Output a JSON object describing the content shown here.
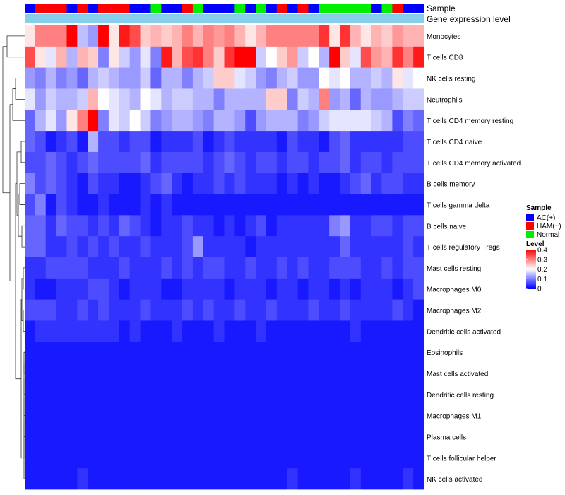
{
  "chart_data": {
    "type": "heatmap",
    "annotation_labels": [
      "Sample",
      "Gene expression level"
    ],
    "sample_groups": [
      "A",
      "H",
      "H",
      "H",
      "A",
      "H",
      "A",
      "H",
      "H",
      "H",
      "A",
      "A",
      "N",
      "A",
      "A",
      "H",
      "N",
      "A",
      "A",
      "A",
      "N",
      "A",
      "N",
      "A",
      "H",
      "A",
      "H",
      "A",
      "N",
      "N",
      "N",
      "N",
      "N",
      "A",
      "N",
      "H",
      "A",
      "A"
    ],
    "rows": [
      "Monocytes",
      "T cells CD8",
      "NK cells resting",
      "Neutrophils",
      "T cells CD4 memory resting",
      "T cells CD4 naive",
      "T cells CD4 memory activated",
      "B cells memory",
      "T cells gamma delta",
      "B cells naive",
      "T cells regulatory  Tregs",
      "Mast cells resting",
      "Macrophages M0",
      "Macrophages M2",
      "Dendritic cells activated",
      "Eosinophils",
      "Mast cells activated",
      "Dendritic cells resting",
      "Macrophages M1",
      "Plasma cells",
      "T cells follicular helper",
      "NK cells activated"
    ],
    "row_profiles": {
      "Monocytes": [
        0.22,
        0.3,
        0.3,
        0.3,
        0.4,
        0.15,
        0.12,
        0.4,
        0.22,
        0.38,
        0.34,
        0.24,
        0.26,
        0.24,
        0.26,
        0.3,
        0.26,
        0.3,
        0.28,
        0.3,
        0.26,
        0.22,
        0.26,
        0.3,
        0.3,
        0.3,
        0.3,
        0.3,
        0.36,
        0.22,
        0.36,
        0.26,
        0.22,
        0.26,
        0.24,
        0.28,
        0.26,
        0.26
      ],
      "T cells CD8": [
        0.34,
        0.22,
        0.18,
        0.26,
        0.14,
        0.26,
        0.24,
        0.1,
        0.22,
        0.16,
        0.12,
        0.18,
        0.1,
        0.38,
        0.26,
        0.34,
        0.36,
        0.3,
        0.24,
        0.36,
        0.4,
        0.4,
        0.16,
        0.2,
        0.24,
        0.28,
        0.16,
        0.2,
        0.14,
        0.4,
        0.24,
        0.18,
        0.34,
        0.28,
        0.26,
        0.36,
        0.3,
        0.38
      ],
      "NK cells resting": [
        0.12,
        0.1,
        0.14,
        0.1,
        0.12,
        0.08,
        0.14,
        0.16,
        0.14,
        0.12,
        0.12,
        0.16,
        0.08,
        0.14,
        0.14,
        0.1,
        0.14,
        0.16,
        0.24,
        0.24,
        0.18,
        0.16,
        0.12,
        0.1,
        0.14,
        0.16,
        0.12,
        0.12,
        0.2,
        0.18,
        0.2,
        0.14,
        0.14,
        0.16,
        0.14,
        0.22,
        0.18,
        0.2
      ],
      "Neutrophils": [
        0.18,
        0.12,
        0.16,
        0.14,
        0.14,
        0.16,
        0.26,
        0.2,
        0.18,
        0.16,
        0.14,
        0.2,
        0.18,
        0.14,
        0.16,
        0.16,
        0.14,
        0.14,
        0.1,
        0.14,
        0.14,
        0.14,
        0.14,
        0.24,
        0.24,
        0.1,
        0.16,
        0.14,
        0.3,
        0.12,
        0.14,
        0.08,
        0.14,
        0.12,
        0.12,
        0.14,
        0.16,
        0.16
      ],
      "T cells CD4 memory resting": [
        0.08,
        0.14,
        0.18,
        0.12,
        0.22,
        0.3,
        0.4,
        0.1,
        0.18,
        0.16,
        0.2,
        0.16,
        0.1,
        0.12,
        0.14,
        0.14,
        0.12,
        0.1,
        0.14,
        0.14,
        0.12,
        0.06,
        0.12,
        0.14,
        0.14,
        0.14,
        0.1,
        0.12,
        0.16,
        0.18,
        0.18,
        0.18,
        0.18,
        0.16,
        0.14,
        0.06,
        0.1,
        0.08
      ],
      "T cells CD4 naive": [
        0.08,
        0.06,
        0.02,
        0.04,
        0.06,
        0.02,
        0.14,
        0.06,
        0.06,
        0.04,
        0.06,
        0.06,
        0.02,
        0.04,
        0.04,
        0.04,
        0.06,
        0.02,
        0.04,
        0.06,
        0.04,
        0.04,
        0.04,
        0.04,
        0.02,
        0.06,
        0.04,
        0.04,
        0.02,
        0.06,
        0.08,
        0.04,
        0.04,
        0.04,
        0.04,
        0.04,
        0.06,
        0.06
      ],
      "T cells CD4 memory activated": [
        0.06,
        0.06,
        0.08,
        0.06,
        0.04,
        0.06,
        0.08,
        0.06,
        0.06,
        0.06,
        0.06,
        0.08,
        0.04,
        0.06,
        0.06,
        0.06,
        0.06,
        0.04,
        0.06,
        0.08,
        0.06,
        0.04,
        0.06,
        0.06,
        0.04,
        0.06,
        0.06,
        0.04,
        0.06,
        0.06,
        0.08,
        0.04,
        0.06,
        0.06,
        0.04,
        0.06,
        0.06,
        0.06
      ],
      "B cells memory": [
        0.1,
        0.06,
        0.08,
        0.06,
        0.04,
        0.02,
        0.06,
        0.04,
        0.04,
        0.02,
        0.02,
        0.04,
        0.06,
        0.08,
        0.04,
        0.02,
        0.04,
        0.04,
        0.06,
        0.04,
        0.06,
        0.04,
        0.04,
        0.04,
        0.02,
        0.04,
        0.02,
        0.04,
        0.02,
        0.02,
        0.04,
        0.06,
        0.08,
        0.04,
        0.06,
        0.06,
        0.04,
        0.04
      ],
      "T cells gamma delta": [
        0.06,
        0.1,
        0.02,
        0.06,
        0.04,
        0.02,
        0.02,
        0.04,
        0.02,
        0.02,
        0.02,
        0.04,
        0.02,
        0.04,
        0.02,
        0.02,
        0.02,
        0.02,
        0.02,
        0.02,
        0.02,
        0.02,
        0.02,
        0.02,
        0.02,
        0.02,
        0.02,
        0.02,
        0.02,
        0.02,
        0.02,
        0.02,
        0.02,
        0.02,
        0.02,
        0.02,
        0.02,
        0.02
      ],
      "B cells naive": [
        0.08,
        0.08,
        0.04,
        0.08,
        0.06,
        0.06,
        0.04,
        0.06,
        0.04,
        0.08,
        0.06,
        0.04,
        0.02,
        0.04,
        0.04,
        0.06,
        0.04,
        0.04,
        0.02,
        0.04,
        0.02,
        0.04,
        0.06,
        0.02,
        0.04,
        0.04,
        0.04,
        0.04,
        0.04,
        0.1,
        0.12,
        0.04,
        0.04,
        0.06,
        0.06,
        0.04,
        0.06,
        0.06
      ],
      "T cells regulatory  Tregs": [
        0.08,
        0.08,
        0.04,
        0.04,
        0.06,
        0.04,
        0.06,
        0.04,
        0.06,
        0.04,
        0.04,
        0.06,
        0.04,
        0.04,
        0.04,
        0.06,
        0.12,
        0.04,
        0.04,
        0.04,
        0.04,
        0.02,
        0.04,
        0.04,
        0.04,
        0.04,
        0.04,
        0.04,
        0.04,
        0.04,
        0.08,
        0.04,
        0.04,
        0.04,
        0.04,
        0.04,
        0.06,
        0.04
      ],
      "Mast cells resting": [
        0.04,
        0.04,
        0.06,
        0.06,
        0.06,
        0.06,
        0.04,
        0.04,
        0.04,
        0.06,
        0.04,
        0.04,
        0.04,
        0.06,
        0.04,
        0.06,
        0.04,
        0.06,
        0.06,
        0.04,
        0.04,
        0.06,
        0.04,
        0.04,
        0.06,
        0.04,
        0.06,
        0.04,
        0.04,
        0.06,
        0.06,
        0.06,
        0.04,
        0.04,
        0.06,
        0.04,
        0.06,
        0.06
      ],
      "Macrophages M0": [
        0.04,
        0.02,
        0.02,
        0.04,
        0.04,
        0.04,
        0.06,
        0.06,
        0.04,
        0.02,
        0.04,
        0.04,
        0.04,
        0.02,
        0.02,
        0.04,
        0.04,
        0.04,
        0.04,
        0.02,
        0.04,
        0.04,
        0.04,
        0.02,
        0.04,
        0.04,
        0.02,
        0.04,
        0.04,
        0.02,
        0.04,
        0.02,
        0.04,
        0.04,
        0.04,
        0.02,
        0.04,
        0.06
      ],
      "Macrophages M2": [
        0.06,
        0.06,
        0.06,
        0.04,
        0.04,
        0.06,
        0.04,
        0.06,
        0.04,
        0.04,
        0.04,
        0.06,
        0.04,
        0.04,
        0.04,
        0.06,
        0.04,
        0.06,
        0.04,
        0.04,
        0.06,
        0.04,
        0.04,
        0.06,
        0.04,
        0.04,
        0.04,
        0.06,
        0.04,
        0.04,
        0.06,
        0.04,
        0.04,
        0.04,
        0.04,
        0.06,
        0.04,
        0.02
      ],
      "Dendritic cells activated": [
        0.02,
        0.04,
        0.04,
        0.04,
        0.04,
        0.04,
        0.04,
        0.04,
        0.04,
        0.02,
        0.04,
        0.02,
        0.02,
        0.02,
        0.04,
        0.02,
        0.02,
        0.02,
        0.04,
        0.02,
        0.02,
        0.02,
        0.04,
        0.02,
        0.02,
        0.02,
        0.02,
        0.02,
        0.02,
        0.02,
        0.02,
        0.04,
        0.02,
        0.02,
        0.02,
        0.02,
        0.02,
        0.02
      ],
      "Eosinophils": [
        0.02,
        0.02,
        0.02,
        0.02,
        0.02,
        0.02,
        0.02,
        0.02,
        0.02,
        0.02,
        0.02,
        0.02,
        0.02,
        0.02,
        0.02,
        0.02,
        0.02,
        0.02,
        0.02,
        0.02,
        0.02,
        0.02,
        0.02,
        0.02,
        0.02,
        0.02,
        0.02,
        0.02,
        0.02,
        0.02,
        0.02,
        0.02,
        0.02,
        0.02,
        0.02,
        0.02,
        0.02,
        0.02
      ],
      "Mast cells activated": [
        0.02,
        0.02,
        0.02,
        0.02,
        0.02,
        0.02,
        0.02,
        0.02,
        0.02,
        0.02,
        0.02,
        0.02,
        0.02,
        0.02,
        0.02,
        0.02,
        0.02,
        0.02,
        0.02,
        0.02,
        0.02,
        0.02,
        0.02,
        0.02,
        0.02,
        0.02,
        0.02,
        0.02,
        0.02,
        0.02,
        0.02,
        0.02,
        0.02,
        0.02,
        0.02,
        0.02,
        0.02,
        0.02
      ],
      "Dendritic cells resting": [
        0.02,
        0.02,
        0.02,
        0.02,
        0.02,
        0.02,
        0.02,
        0.02,
        0.02,
        0.02,
        0.02,
        0.02,
        0.02,
        0.02,
        0.02,
        0.02,
        0.02,
        0.02,
        0.02,
        0.02,
        0.02,
        0.02,
        0.02,
        0.02,
        0.02,
        0.02,
        0.02,
        0.02,
        0.02,
        0.02,
        0.02,
        0.02,
        0.02,
        0.02,
        0.02,
        0.02,
        0.02,
        0.02
      ],
      "Macrophages M1": [
        0.02,
        0.02,
        0.02,
        0.02,
        0.02,
        0.02,
        0.02,
        0.02,
        0.02,
        0.02,
        0.02,
        0.02,
        0.02,
        0.02,
        0.02,
        0.02,
        0.02,
        0.02,
        0.02,
        0.02,
        0.02,
        0.02,
        0.02,
        0.02,
        0.02,
        0.02,
        0.02,
        0.02,
        0.02,
        0.02,
        0.02,
        0.02,
        0.02,
        0.02,
        0.02,
        0.02,
        0.02,
        0.02
      ],
      "Plasma cells": [
        0.02,
        0.02,
        0.02,
        0.02,
        0.02,
        0.02,
        0.02,
        0.02,
        0.02,
        0.02,
        0.02,
        0.02,
        0.02,
        0.02,
        0.02,
        0.02,
        0.02,
        0.02,
        0.02,
        0.02,
        0.02,
        0.02,
        0.02,
        0.02,
        0.02,
        0.02,
        0.02,
        0.02,
        0.02,
        0.02,
        0.02,
        0.02,
        0.02,
        0.02,
        0.02,
        0.02,
        0.02,
        0.02
      ],
      "T cells follicular helper": [
        0.02,
        0.02,
        0.02,
        0.02,
        0.02,
        0.02,
        0.02,
        0.02,
        0.02,
        0.02,
        0.02,
        0.02,
        0.02,
        0.02,
        0.02,
        0.02,
        0.02,
        0.02,
        0.02,
        0.02,
        0.02,
        0.02,
        0.02,
        0.02,
        0.02,
        0.02,
        0.02,
        0.02,
        0.02,
        0.02,
        0.02,
        0.02,
        0.02,
        0.02,
        0.02,
        0.02,
        0.02,
        0.02
      ],
      "NK cells activated": [
        0.02,
        0.02,
        0.02,
        0.02,
        0.02,
        0.04,
        0.02,
        0.02,
        0.02,
        0.02,
        0.02,
        0.02,
        0.02,
        0.02,
        0.02,
        0.02,
        0.02,
        0.02,
        0.02,
        0.02,
        0.02,
        0.02,
        0.02,
        0.02,
        0.02,
        0.04,
        0.02,
        0.02,
        0.02,
        0.02,
        0.02,
        0.04,
        0.02,
        0.02,
        0.02,
        0.02,
        0.04,
        0.02
      ]
    },
    "legend": {
      "sample_title": "Sample",
      "sample_items": [
        {
          "key": "A",
          "label": "AC(+)",
          "color": "#0000ff"
        },
        {
          "key": "H",
          "label": "HAM(+)",
          "color": "#ff0000"
        },
        {
          "key": "N",
          "label": "Normal",
          "color": "#00ee00"
        }
      ],
      "level_title": "Level",
      "level_ticks": [
        "0.4",
        "0.3",
        "0.2",
        "0.1",
        "0"
      ],
      "range": [
        0,
        0.4
      ]
    },
    "colors": {
      "low": "#0000ff",
      "mid": "#ffffff",
      "high": "#ff0000",
      "expression_annotation": "#87ceeb"
    }
  }
}
